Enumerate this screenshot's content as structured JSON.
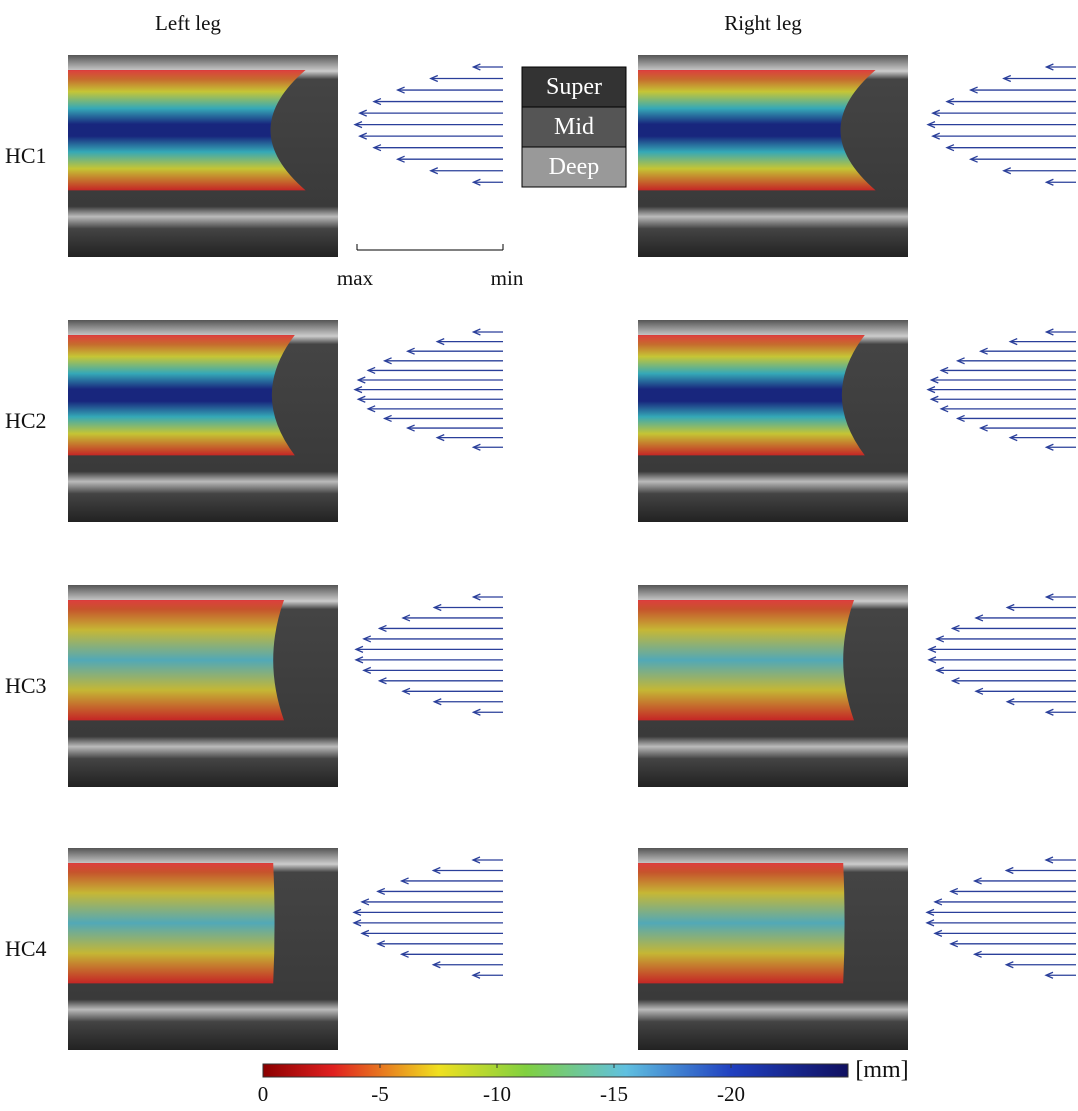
{
  "header": {
    "left": "Left leg",
    "right": "Right leg"
  },
  "rows": [
    "HC1",
    "HC2",
    "HC3",
    "HC4"
  ],
  "legend": [
    "Super",
    "Mid",
    "Deep"
  ],
  "scale": {
    "max": "max",
    "min": "min"
  },
  "colorbar": {
    "lim": [
      0,
      -25
    ],
    "ticks": [
      0,
      -5,
      -10,
      -15,
      -20
    ],
    "unit": "[mm]"
  }
}
